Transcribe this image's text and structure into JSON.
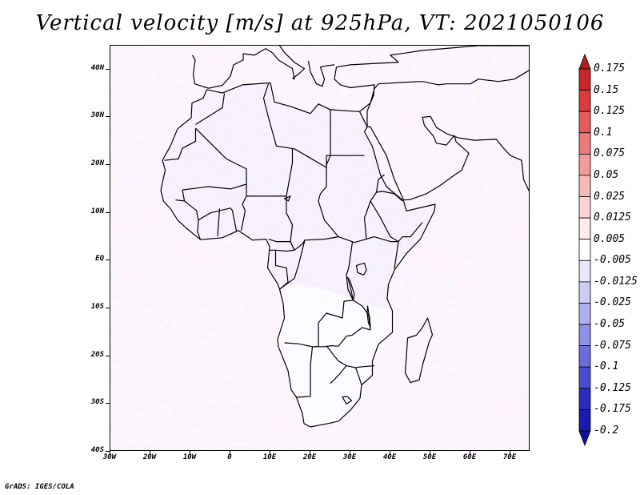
{
  "title": "Vertical velocity [m/s] at 925hPa, VT: 2021050106",
  "credit": "GrADS: IGES/COLA",
  "map": {
    "lon_range": [
      -30,
      75
    ],
    "lat_range": [
      -40,
      45
    ],
    "lat_labels": [
      "40N",
      "30N",
      "20N",
      "10N",
      "EQ",
      "10S",
      "20S",
      "30S",
      "40S"
    ],
    "lat_values": [
      40,
      30,
      20,
      10,
      0,
      -10,
      -20,
      -30,
      -40
    ],
    "lon_labels": [
      "30W",
      "20W",
      "10W",
      "0",
      "10E",
      "20E",
      "30E",
      "40E",
      "50E",
      "60E",
      "70E"
    ],
    "lon_values": [
      -30,
      -20,
      -10,
      0,
      10,
      20,
      30,
      40,
      50,
      60,
      70
    ],
    "coastline_color": "#000000",
    "field": "vertical velocity (m/s)"
  },
  "colorbar": {
    "labels": [
      "0.175",
      "0.15",
      "0.125",
      "0.1",
      "0.075",
      "0.05",
      "0.025",
      "0.0125",
      "0.005",
      "-0.005",
      "-0.0125",
      "-0.025",
      "-0.05",
      "-0.075",
      "-0.1",
      "-0.125",
      "-0.175",
      "-0.2"
    ],
    "colors": [
      "#b21e1e",
      "#c82828",
      "#dc3c3c",
      "#e45c5c",
      "#ec7c7c",
      "#f29c9c",
      "#f6baba",
      "#fad4d4",
      "#fdecec",
      "#ffffff",
      "#e8e8fa",
      "#cdcdf4",
      "#b0b0ee",
      "#9090e6",
      "#6c6cdc",
      "#4c4cd0",
      "#2c2cc2",
      "#1a1ab0",
      "#10109e"
    ]
  }
}
